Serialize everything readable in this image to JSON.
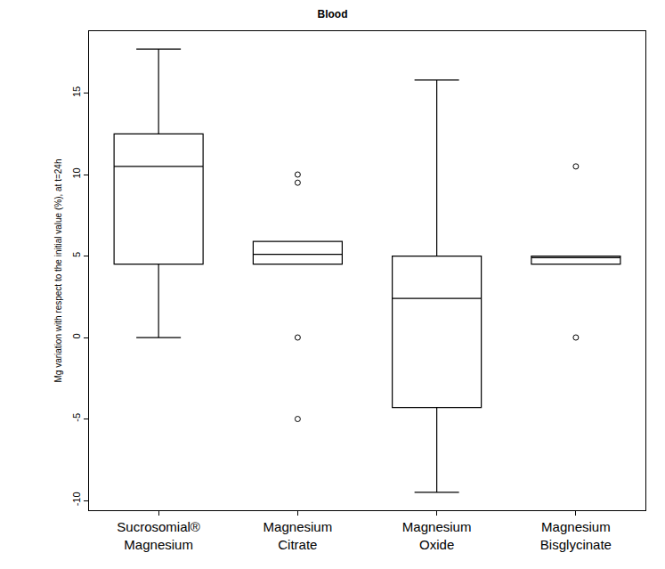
{
  "chart_data": {
    "type": "box",
    "title": "Blood",
    "y_label": "Mg variation with respect to the initial value (%), at t=24h",
    "categories": [
      "Sucrosomial® Magnesium",
      "Magnesium Citrate",
      "Magnesium Oxide",
      "Magnesium Bisglycinate"
    ],
    "boxes": [
      {
        "lower": 0,
        "q1": 4.5,
        "median": 10.5,
        "q3": 12.5,
        "upper": 17.7,
        "outliers": []
      },
      {
        "lower": 4.5,
        "q1": 4.5,
        "median": 5.1,
        "q3": 5.9,
        "upper": 5.9,
        "outliers": [
          10,
          9.5,
          0,
          -5
        ]
      },
      {
        "lower": -9.5,
        "q1": -4.3,
        "median": 2.4,
        "q3": 5.0,
        "upper": 15.8,
        "outliers": []
      },
      {
        "lower": 4.5,
        "q1": 4.5,
        "median": 4.9,
        "q3": 5.0,
        "upper": 5.0,
        "outliers": [
          10.5,
          0
        ]
      }
    ],
    "color": "#000000",
    "marker": "circle-open",
    "ylim": [
      -10.6,
      18.8
    ],
    "yticks": [
      -10,
      -5,
      0,
      5,
      10,
      15
    ],
    "grid": false
  }
}
